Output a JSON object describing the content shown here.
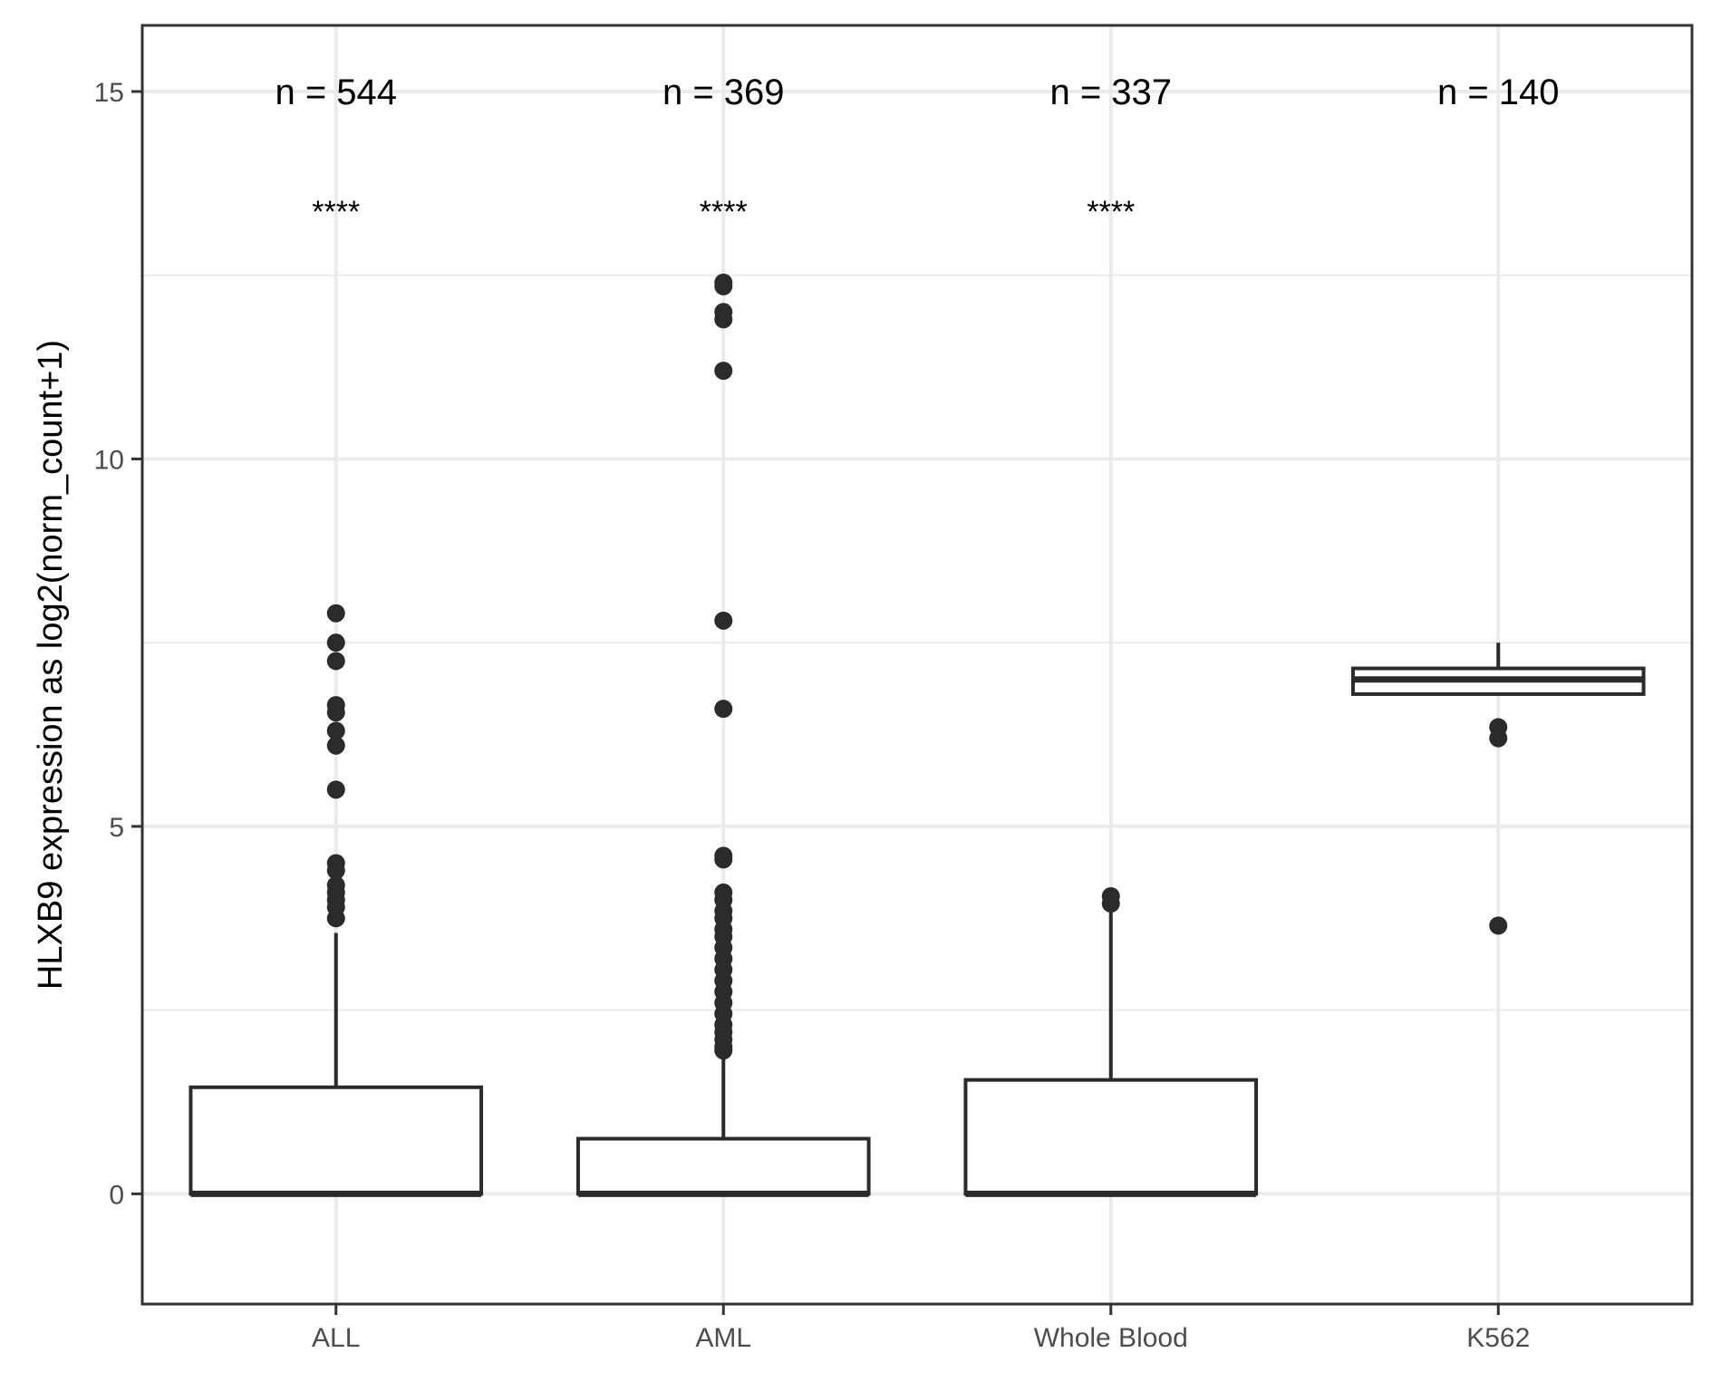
{
  "chart_data": {
    "type": "boxplot",
    "title": "",
    "xlabel": "",
    "ylabel": "HLXB9 expression as log2(norm_count+1)",
    "ylim": [
      -1.5,
      15.9
    ],
    "yticks": [
      0,
      5,
      10,
      15
    ],
    "ytick_labels": [
      "0",
      "5",
      "10",
      "15"
    ],
    "grid": true,
    "categories": [
      "ALL",
      "AML",
      "Whole Blood",
      "K562"
    ],
    "counts": [
      "n = 544",
      "n = 369",
      "n = 337",
      "n = 140"
    ],
    "significance": [
      "****",
      "****",
      "****",
      ""
    ],
    "boxes": [
      {
        "category": "ALL",
        "whisker_low": 0,
        "q1": 0,
        "median": 0,
        "q3": 1.45,
        "whisker_high": 3.55,
        "outliers": [
          7.9,
          7.5,
          7.25,
          6.65,
          6.55,
          6.3,
          6.1,
          5.5,
          4.5,
          4.4,
          4.2,
          4.1,
          4.0,
          3.9,
          3.75
        ]
      },
      {
        "category": "AML",
        "whisker_low": 0,
        "q1": 0,
        "median": 0,
        "q3": 0.75,
        "whisker_high": 1.85,
        "outliers": [
          12.4,
          12.35,
          12.0,
          11.9,
          11.2,
          7.8,
          6.6,
          4.6,
          4.55,
          4.1,
          4.0,
          3.85,
          3.75,
          3.6,
          3.5,
          3.35,
          3.2,
          3.05,
          2.9,
          2.75,
          2.6,
          2.45,
          2.3,
          2.2,
          2.1,
          2.0,
          1.95
        ]
      },
      {
        "category": "Whole Blood",
        "whisker_low": 0,
        "q1": 0,
        "median": 0,
        "q3": 1.55,
        "whisker_high": 3.85,
        "outliers": [
          4.05,
          3.95
        ]
      },
      {
        "category": "K562",
        "whisker_low": 6.8,
        "q1": 6.8,
        "median": 7.0,
        "q3": 7.15,
        "whisker_high": 7.5,
        "outliers": [
          6.35,
          6.2,
          3.65
        ]
      }
    ],
    "colors": {
      "box_stroke": "#2b2b2b",
      "point": "#2b2b2b",
      "grid": "#ebebeb",
      "panel_border": "#333333"
    }
  }
}
